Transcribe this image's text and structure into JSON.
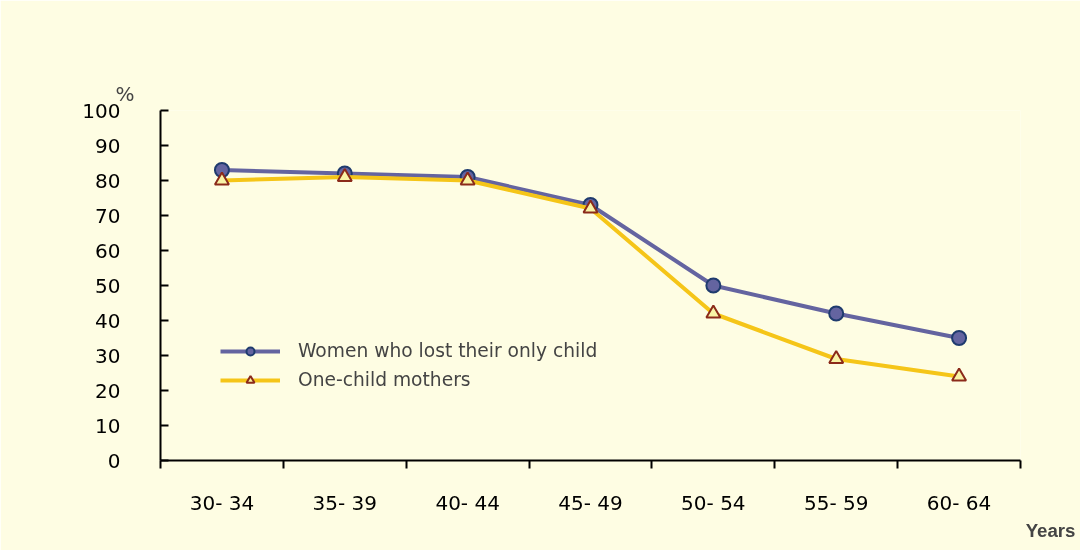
{
  "chart_data": {
    "type": "line",
    "ylabel": "%",
    "xlabel": "Years",
    "categories": [
      "30- 34",
      "35- 39",
      "40- 44",
      "45- 49",
      "50- 54",
      "55- 59",
      "60- 64"
    ],
    "series": [
      {
        "name": "Women who lost their only child",
        "color": "#6464a0",
        "marker": "circle",
        "values": [
          83,
          82,
          81,
          73,
          50,
          42,
          35
        ]
      },
      {
        "name": "One-child mothers",
        "color": "#f5c518",
        "marker": "triangle",
        "values": [
          80,
          81,
          80,
          72,
          42,
          29,
          24
        ]
      }
    ],
    "ylim": [
      0,
      100
    ],
    "yticks": [
      0,
      10,
      20,
      30,
      40,
      50,
      60,
      70,
      80,
      90,
      100
    ],
    "grid": false,
    "legend": "left",
    "line_style": "solid"
  }
}
